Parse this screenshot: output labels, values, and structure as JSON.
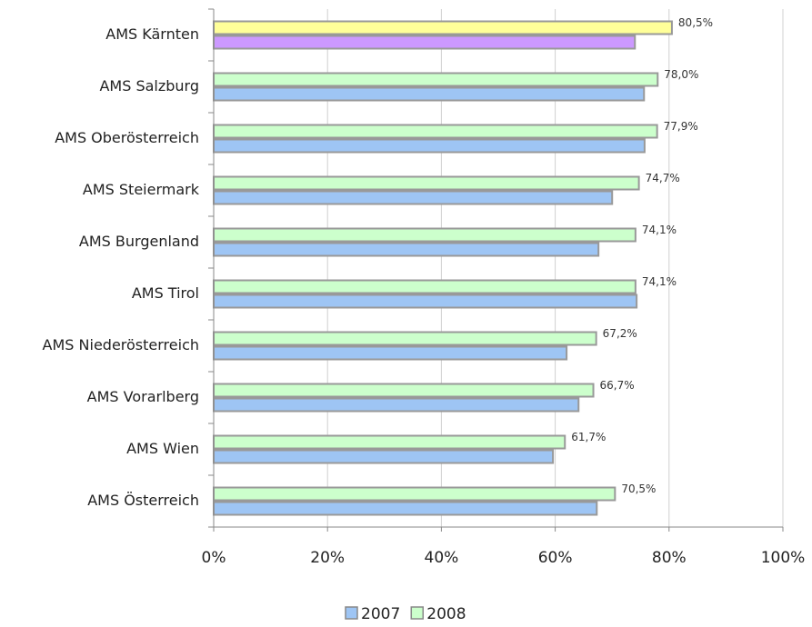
{
  "chart_data": {
    "type": "hbar",
    "categories": [
      "AMS Kärnten",
      "AMS Salzburg",
      "AMS Oberösterreich",
      "AMS Steiermark",
      "AMS Burgenland",
      "AMS Tirol",
      "AMS Niederösterreich",
      "AMS Vorarlberg",
      "AMS Wien",
      "AMS Österreich"
    ],
    "series": [
      {
        "name": "2007",
        "color": "#9ec5f4",
        "colors": [
          "#cc99ff",
          "#9ec5f4",
          "#9ec5f4",
          "#9ec5f4",
          "#9ec5f4",
          "#9ec5f4",
          "#9ec5f4",
          "#9ec5f4",
          "#9ec5f4",
          "#9ec5f4"
        ],
        "values": [
          74.0,
          75.6,
          75.7,
          70.0,
          67.6,
          74.3,
          62.0,
          64.1,
          59.6,
          67.3
        ]
      },
      {
        "name": "2008",
        "color": "#ccffcc",
        "colors": [
          "#ffff99",
          "#ccffcc",
          "#ccffcc",
          "#ccffcc",
          "#ccffcc",
          "#ccffcc",
          "#ccffcc",
          "#ccffcc",
          "#ccffcc",
          "#ccffcc"
        ],
        "values": [
          80.5,
          78.0,
          77.9,
          74.7,
          74.1,
          74.1,
          67.2,
          66.7,
          61.7,
          70.5
        ],
        "value_labels": [
          "80,5%",
          "78,0%",
          "77,9%",
          "74,7%",
          "74,1%",
          "74,1%",
          "67,2%",
          "66,7%",
          "61,7%",
          "70,5%"
        ]
      }
    ],
    "xlim": [
      0,
      100
    ],
    "xticks": [
      {
        "value": 0,
        "label": "0%"
      },
      {
        "value": 20,
        "label": "20%"
      },
      {
        "value": 40,
        "label": "40%"
      },
      {
        "value": 60,
        "label": "60%"
      },
      {
        "value": 80,
        "label": "80%"
      },
      {
        "value": 100,
        "label": "100%"
      }
    ],
    "grid": true,
    "legend": "bottom"
  }
}
